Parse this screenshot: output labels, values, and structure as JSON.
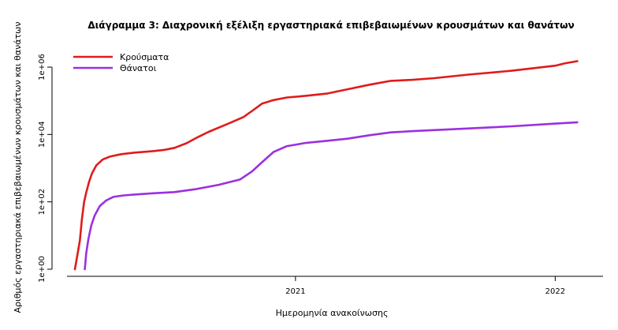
{
  "chart_data": {
    "type": "line",
    "title": "Διάγραμμα 3: Διαχρονική εξέλιξη εργαστηριακά επιβεβαιωμένων κρουσμάτων και θανάτων",
    "xlabel": "Ημερομηνία ανακοίνωσης",
    "ylabel": "Αριθμός εργαστηριακά επιβεβαιωμένων κρουσμάτων και θανάτων",
    "y_scale": "log10",
    "ylim": [
      1,
      1000000
    ],
    "yticks": [
      {
        "value": 1,
        "label": "1e+00"
      },
      {
        "value": 100,
        "label": "1e+02"
      },
      {
        "value": 10000,
        "label": "1e+04"
      },
      {
        "value": 1000000,
        "label": "1e+06"
      }
    ],
    "xlim": [
      "2020-02-26",
      "2022-02-15"
    ],
    "xticks": [
      {
        "value": "2021-01-01",
        "label": "2021"
      },
      {
        "value": "2022-01-01",
        "label": "2022"
      }
    ],
    "grid": false,
    "legend_position": "top-left",
    "series": [
      {
        "name": "Κρούσματα",
        "color": "#e01b1b",
        "x": [
          "2020-02-26",
          "2020-03-01",
          "2020-03-04",
          "2020-03-07",
          "2020-03-10",
          "2020-03-13",
          "2020-03-17",
          "2020-03-21",
          "2020-03-27",
          "2020-04-05",
          "2020-04-15",
          "2020-05-01",
          "2020-05-20",
          "2020-06-15",
          "2020-07-01",
          "2020-07-15",
          "2020-08-01",
          "2020-08-15",
          "2020-09-01",
          "2020-10-01",
          "2020-10-20",
          "2020-11-01",
          "2020-11-15",
          "2020-12-01",
          "2020-12-20",
          "2021-01-15",
          "2021-02-15",
          "2021-03-15",
          "2021-04-15",
          "2021-05-15",
          "2021-06-15",
          "2021-07-15",
          "2021-09-01",
          "2021-11-01",
          "2022-01-01",
          "2022-01-15",
          "2022-02-01"
        ],
        "values": [
          1,
          3,
          7,
          32,
          99,
          190,
          400,
          700,
          1200,
          1800,
          2200,
          2600,
          2900,
          3200,
          3500,
          4000,
          5500,
          8000,
          12000,
          22000,
          33000,
          50000,
          82000,
          105000,
          125000,
          140000,
          165000,
          220000,
          300000,
          390000,
          420000,
          470000,
          600000,
          780000,
          1100000,
          1300000,
          1500000
        ]
      },
      {
        "name": "Θάνατοι",
        "color": "#9b30e0",
        "x": [
          "2020-03-11",
          "2020-03-13",
          "2020-03-16",
          "2020-03-20",
          "2020-03-25",
          "2020-04-01",
          "2020-04-10",
          "2020-04-20",
          "2020-05-05",
          "2020-05-20",
          "2020-06-15",
          "2020-07-15",
          "2020-08-15",
          "2020-09-15",
          "2020-10-15",
          "2020-11-01",
          "2020-11-15",
          "2020-12-01",
          "2020-12-20",
          "2021-01-15",
          "2021-02-15",
          "2021-03-15",
          "2021-04-15",
          "2021-05-15",
          "2021-06-15",
          "2021-08-01",
          "2021-11-01",
          "2022-01-01",
          "2022-02-01"
        ],
        "values": [
          1,
          3,
          8,
          20,
          40,
          75,
          110,
          140,
          155,
          165,
          180,
          195,
          240,
          320,
          460,
          800,
          1500,
          3000,
          4500,
          5600,
          6500,
          7500,
          9500,
          11500,
          12600,
          14000,
          17500,
          21000,
          23000
        ]
      }
    ]
  }
}
